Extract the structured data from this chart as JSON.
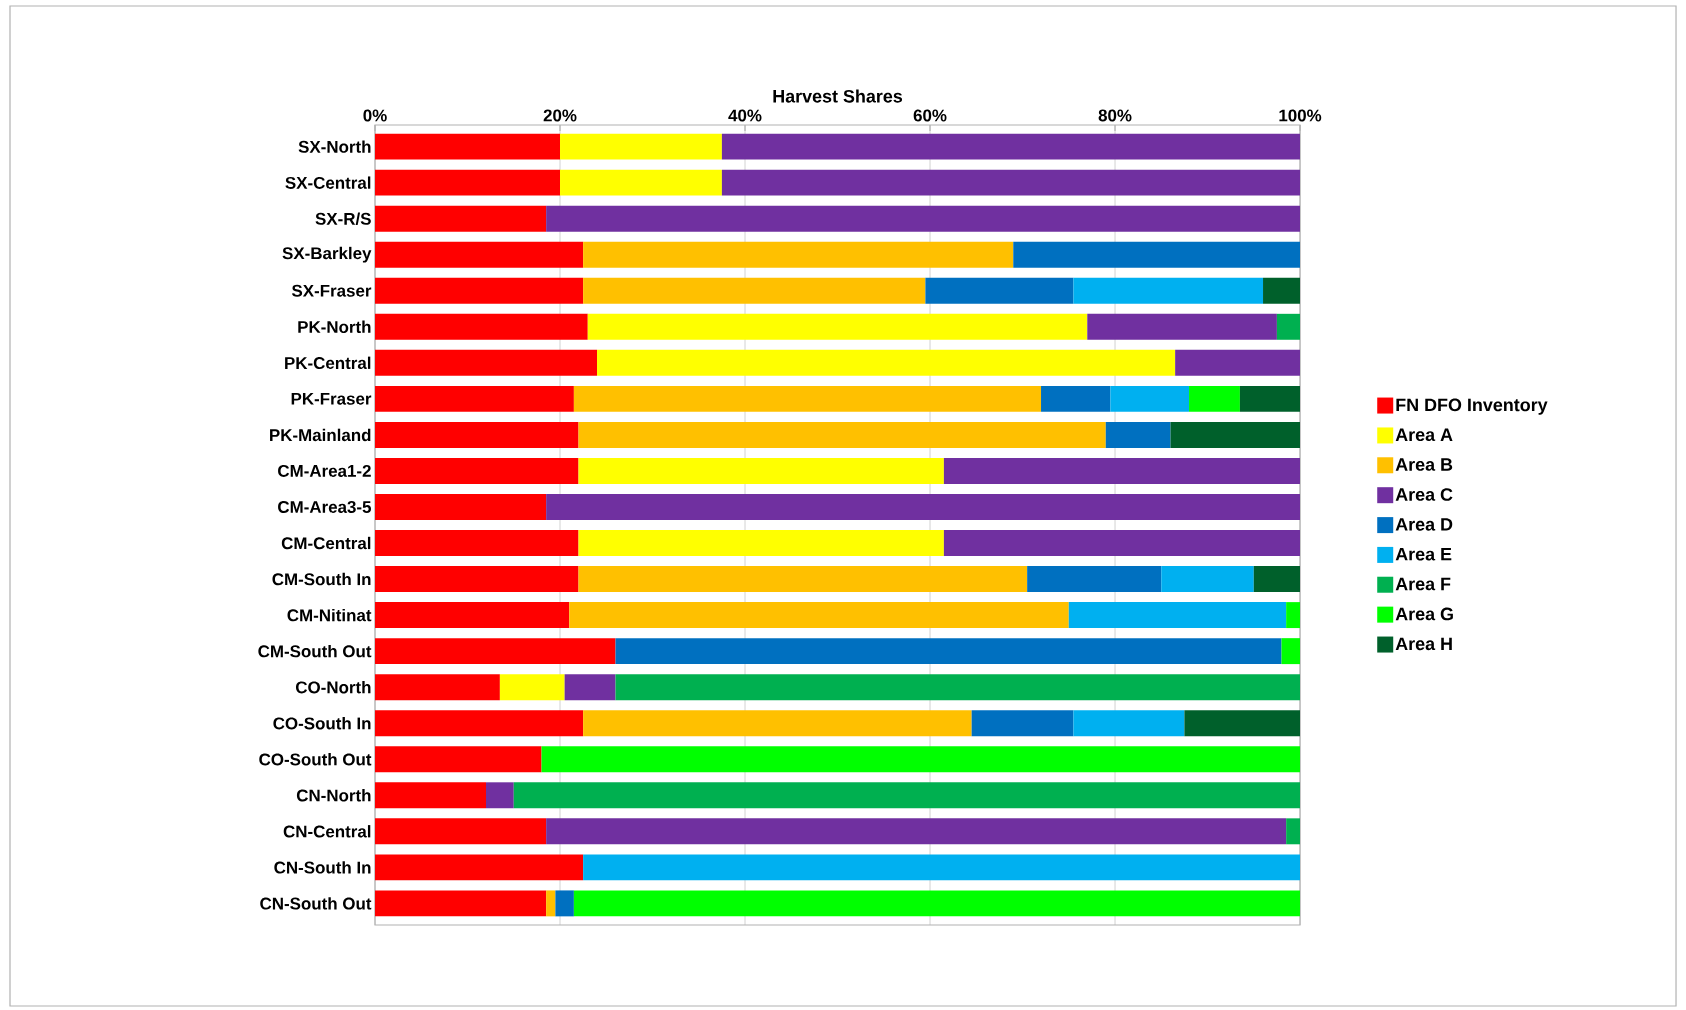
{
  "chart_data": {
    "type": "bar",
    "orientation": "horizontal",
    "stacked": true,
    "xlabel": "Harvest Shares",
    "categories": [
      "SX-North",
      "SX-Central",
      "SX-R/S",
      "SX-Barkley",
      "SX-Fraser",
      "PK-North",
      "PK-Central",
      "PK-Fraser",
      "PK-Mainland",
      "CM-Area1-2",
      "CM-Area3-5",
      "CM-Central",
      "CM-South In",
      "CM-Nitinat",
      "CM-South Out",
      "CO-North",
      "CO-South In",
      "CO-South Out",
      "CN-North",
      "CN-Central",
      "CN-South In",
      "CN-South Out"
    ],
    "series": [
      {
        "name": "FN DFO Inventory",
        "color": "#ff0000",
        "values": [
          20,
          20,
          18.5,
          22.5,
          22.5,
          23,
          24,
          21.5,
          22,
          22,
          18.5,
          22,
          22,
          21,
          26,
          13.5,
          22.5,
          18,
          12,
          18.5,
          22.5,
          18.5
        ]
      },
      {
        "name": "Area A",
        "color": "#ffff00",
        "values": [
          17.5,
          17.5,
          null,
          null,
          null,
          54,
          62.5,
          null,
          null,
          39.5,
          null,
          39.5,
          null,
          null,
          null,
          7,
          null,
          null,
          null,
          null,
          null,
          null
        ]
      },
      {
        "name": "Area B",
        "color": "#ffc000",
        "values": [
          null,
          null,
          null,
          46.5,
          37,
          null,
          null,
          50.5,
          57,
          null,
          null,
          null,
          48.5,
          54,
          null,
          null,
          42,
          null,
          null,
          null,
          null,
          1
        ]
      },
      {
        "name": "Area C",
        "color": "#7030a0",
        "values": [
          62.5,
          62.5,
          81.5,
          null,
          null,
          20.5,
          13.5,
          null,
          null,
          38.5,
          81.5,
          38.5,
          null,
          null,
          null,
          5.5,
          null,
          null,
          3,
          80,
          null,
          null
        ]
      },
      {
        "name": "Area D",
        "color": "#0070c0",
        "values": [
          null,
          null,
          null,
          31,
          16,
          null,
          null,
          7.5,
          7,
          null,
          null,
          null,
          14.5,
          null,
          72,
          null,
          11,
          null,
          null,
          null,
          null,
          2
        ]
      },
      {
        "name": "Area E",
        "color": "#00b0f0",
        "values": [
          null,
          null,
          null,
          null,
          20.5,
          null,
          null,
          8.5,
          null,
          null,
          null,
          null,
          10,
          23.5,
          null,
          null,
          12,
          null,
          null,
          null,
          77.5,
          null
        ]
      },
      {
        "name": "Area F",
        "color": "#00b050",
        "values": [
          null,
          null,
          null,
          null,
          null,
          2.5,
          null,
          null,
          null,
          null,
          null,
          null,
          null,
          null,
          null,
          74,
          null,
          null,
          85,
          1.5,
          null,
          null
        ]
      },
      {
        "name": "Area G",
        "color": "#00ff00",
        "values": [
          null,
          null,
          null,
          null,
          null,
          null,
          null,
          5.5,
          null,
          null,
          null,
          null,
          null,
          1.5,
          2,
          null,
          null,
          82,
          null,
          null,
          null,
          78.5
        ]
      },
      {
        "name": "Area H",
        "color": "#00602b",
        "values": [
          null,
          null,
          null,
          null,
          4,
          null,
          null,
          6.5,
          14,
          null,
          null,
          null,
          5,
          null,
          null,
          null,
          12.5,
          null,
          null,
          null,
          null,
          null
        ]
      }
    ],
    "xlim": [
      0,
      100
    ],
    "xticks": [
      {
        "value": 0,
        "label": "0%"
      },
      {
        "value": 20,
        "label": "20%"
      },
      {
        "value": 40,
        "label": "40%"
      },
      {
        "value": 60,
        "label": "60%"
      },
      {
        "value": 80,
        "label": "80%"
      },
      {
        "value": 100,
        "label": "100%"
      }
    ],
    "grid": "x",
    "legend": "right"
  }
}
